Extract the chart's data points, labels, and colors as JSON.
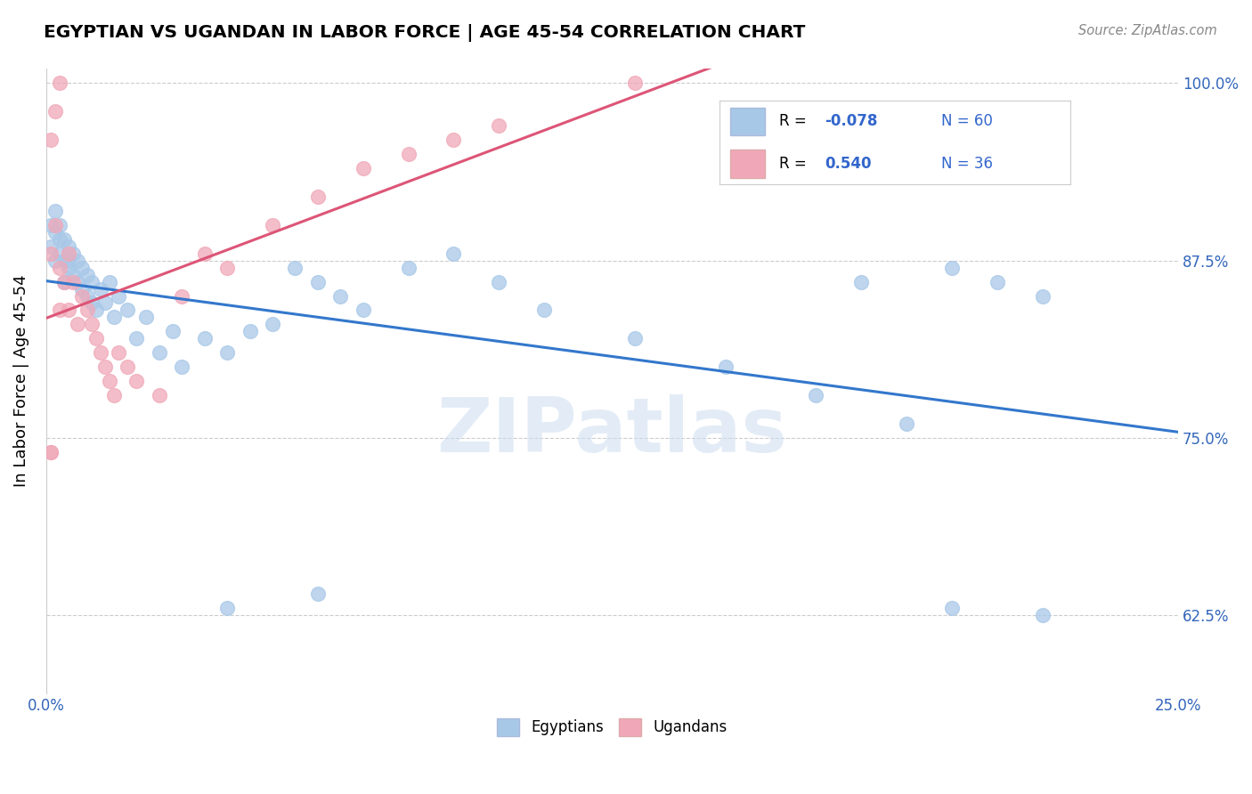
{
  "title": "EGYPTIAN VS UGANDAN IN LABOR FORCE | AGE 45-54 CORRELATION CHART",
  "source": "Source: ZipAtlas.com",
  "ylabel": "In Labor Force | Age 45-54",
  "xlim": [
    0.0,
    0.25
  ],
  "ylim": [
    0.57,
    1.01
  ],
  "xticks": [
    0.0,
    0.05,
    0.1,
    0.15,
    0.2,
    0.25
  ],
  "xticklabels": [
    "0.0%",
    "",
    "",
    "",
    "",
    "25.0%"
  ],
  "yticks": [
    0.625,
    0.75,
    0.875,
    1.0
  ],
  "yticklabels": [
    "62.5%",
    "75.0%",
    "87.5%",
    "100.0%"
  ],
  "blue_R": -0.078,
  "blue_N": 60,
  "pink_R": 0.54,
  "pink_N": 36,
  "blue_color": "#a8c8e8",
  "pink_color": "#f0a8b8",
  "blue_line_color": "#3377cc",
  "pink_line_color": "#dd5577",
  "legend_label_blue": "Egyptians",
  "legend_label_pink": "Ugandans",
  "blue_scatter_x": [
    0.001,
    0.001,
    0.002,
    0.002,
    0.002,
    0.003,
    0.003,
    0.003,
    0.004,
    0.004,
    0.004,
    0.005,
    0.005,
    0.005,
    0.006,
    0.006,
    0.007,
    0.007,
    0.008,
    0.008,
    0.009,
    0.009,
    0.01,
    0.01,
    0.011,
    0.012,
    0.013,
    0.014,
    0.015,
    0.016,
    0.018,
    0.02,
    0.022,
    0.025,
    0.028,
    0.03,
    0.035,
    0.04,
    0.045,
    0.05,
    0.055,
    0.06,
    0.065,
    0.07,
    0.08,
    0.09,
    0.1,
    0.11,
    0.13,
    0.15,
    0.17,
    0.19,
    0.2,
    0.21,
    0.22,
    0.04,
    0.06,
    0.18,
    0.2,
    0.22
  ],
  "blue_scatter_y": [
    0.885,
    0.9,
    0.895,
    0.91,
    0.875,
    0.89,
    0.88,
    0.9,
    0.875,
    0.89,
    0.86,
    0.875,
    0.885,
    0.87,
    0.865,
    0.88,
    0.86,
    0.875,
    0.855,
    0.87,
    0.85,
    0.865,
    0.845,
    0.86,
    0.84,
    0.855,
    0.845,
    0.86,
    0.835,
    0.85,
    0.84,
    0.82,
    0.835,
    0.81,
    0.825,
    0.8,
    0.82,
    0.81,
    0.825,
    0.83,
    0.87,
    0.86,
    0.85,
    0.84,
    0.87,
    0.88,
    0.86,
    0.84,
    0.82,
    0.8,
    0.78,
    0.76,
    0.87,
    0.86,
    0.85,
    0.63,
    0.64,
    0.86,
    0.63,
    0.625
  ],
  "pink_scatter_x": [
    0.001,
    0.001,
    0.002,
    0.003,
    0.003,
    0.004,
    0.005,
    0.005,
    0.006,
    0.007,
    0.008,
    0.009,
    0.01,
    0.011,
    0.012,
    0.013,
    0.014,
    0.015,
    0.016,
    0.018,
    0.02,
    0.025,
    0.03,
    0.035,
    0.04,
    0.05,
    0.06,
    0.07,
    0.08,
    0.09,
    0.1,
    0.001,
    0.002,
    0.13,
    0.003,
    0.001
  ],
  "pink_scatter_y": [
    0.96,
    0.88,
    0.9,
    0.87,
    0.84,
    0.86,
    0.88,
    0.84,
    0.86,
    0.83,
    0.85,
    0.84,
    0.83,
    0.82,
    0.81,
    0.8,
    0.79,
    0.78,
    0.81,
    0.8,
    0.79,
    0.78,
    0.85,
    0.88,
    0.87,
    0.9,
    0.92,
    0.94,
    0.95,
    0.96,
    0.97,
    0.74,
    0.98,
    1.0,
    1.0,
    0.74
  ]
}
